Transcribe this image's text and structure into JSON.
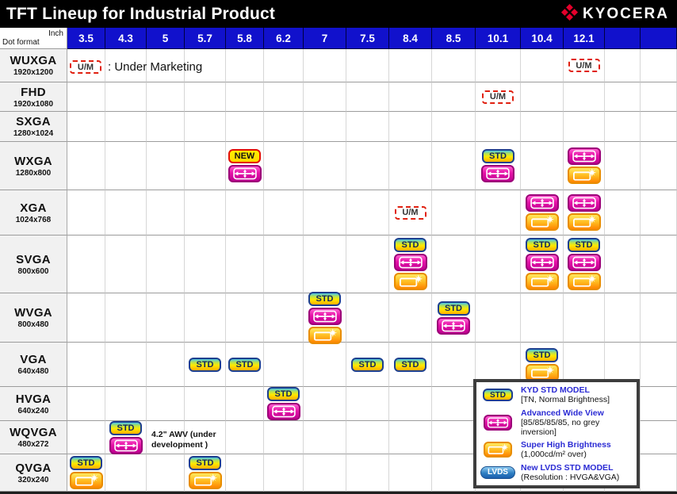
{
  "title": "TFT Lineup for Industrial Product",
  "brand": {
    "name": "KYOCERA"
  },
  "header": {
    "corner_top": "Inch",
    "corner_bottom": "Dot format"
  },
  "badges": {
    "std": "STD",
    "new": "NEW",
    "um": "U/M",
    "lvds": "LVDS"
  },
  "notes": {
    "um_legend": ": Under Marketing",
    "wqvga_dev": "4.2\" AWV (under development )"
  },
  "colors": {
    "header_blue": "#1111CC",
    "kyocera_red": "#E4002B",
    "awv_magenta": "#E612A8",
    "shb_orange": "#FF9900",
    "std_yellow": "#FFE900",
    "um_red": "#E02010",
    "legend_text_blue": "#2B2BD4"
  },
  "legend": {
    "items": [
      {
        "icon": "std-badge",
        "title": "KYD STD MODEL",
        "desc": "[TN, Normal Brightness]"
      },
      {
        "icon": "advanced-wide-view-icon",
        "title": "Advanced Wide View",
        "desc": "[85/85/85/85, no grey inversion]"
      },
      {
        "icon": "super-high-brightness-icon",
        "title": "Super High Brightness",
        "desc": "(1,000cd/m² over)"
      },
      {
        "icon": "lvds-badge",
        "title": "New LVDS STD MODEL",
        "desc": "(Resolution : HVGA&VGA)"
      }
    ]
  },
  "chart_data": {
    "type": "table",
    "title": "TFT Lineup for Industrial Product",
    "columns": [
      "3.5",
      "4.3",
      "5",
      "5.7",
      "5.8",
      "6.2",
      "7",
      "7.5",
      "8.4",
      "8.5",
      "10.1",
      "10.4",
      "12.1"
    ],
    "marker_legend": {
      "STD": "KYD STD MODEL [TN, Normal Brightness]",
      "AWV": "Advanced Wide View [85/85/85/85, no grey inversion]",
      "SHB": "Super High Brightness (1,000cd/m² over)",
      "LVDS": "New LVDS STD MODEL (Resolution : HVGA&VGA)",
      "NEW": "New model",
      "UM": "Under Marketing"
    },
    "rows": [
      {
        "format": "WUXGA",
        "resolution": "1920x1200",
        "cells": {
          "12.1": [
            "UM"
          ]
        }
      },
      {
        "format": "FHD",
        "resolution": "1920x1080",
        "cells": {
          "10.1": [
            "UM"
          ]
        }
      },
      {
        "format": "SXGA",
        "resolution": "1280×1024",
        "cells": {}
      },
      {
        "format": "WXGA",
        "resolution": "1280x800",
        "cells": {
          "5.8": [
            "NEW",
            "AWV"
          ],
          "10.1": [
            "STD",
            "AWV"
          ],
          "12.1": [
            "AWV",
            "SHB"
          ]
        }
      },
      {
        "format": "XGA",
        "resolution": "1024x768",
        "cells": {
          "8.4": [
            "UM"
          ],
          "10.4": [
            "AWV",
            "SHB"
          ],
          "12.1": [
            "AWV",
            "SHB"
          ]
        }
      },
      {
        "format": "SVGA",
        "resolution": "800x600",
        "cells": {
          "8.4": [
            "STD",
            "AWV",
            "SHB"
          ],
          "10.4": [
            "STD",
            "AWV",
            "SHB"
          ],
          "12.1": [
            "STD",
            "AWV",
            "SHB"
          ]
        }
      },
      {
        "format": "WVGA",
        "resolution": "800x480",
        "cells": {
          "7": [
            "STD",
            "AWV",
            "SHB"
          ],
          "8.5": [
            "STD",
            "AWV"
          ]
        }
      },
      {
        "format": "VGA",
        "resolution": "640x480",
        "cells": {
          "5.7": [
            "STD"
          ],
          "5.8": [
            "STD"
          ],
          "7.5": [
            "STD"
          ],
          "8.4": [
            "STD"
          ],
          "10.4": [
            "STD",
            "SHB"
          ]
        }
      },
      {
        "format": "HVGA",
        "resolution": "640x240",
        "cells": {
          "6.2": [
            "STD",
            "AWV"
          ]
        }
      },
      {
        "format": "WQVGA",
        "resolution": "480x272",
        "cells": {
          "4.3": [
            "STD",
            "AWV"
          ]
        }
      },
      {
        "format": "QVGA",
        "resolution": "320x240",
        "cells": {
          "3.5": [
            "STD",
            "SHB"
          ],
          "5.7": [
            "STD",
            "SHB"
          ]
        }
      }
    ]
  }
}
